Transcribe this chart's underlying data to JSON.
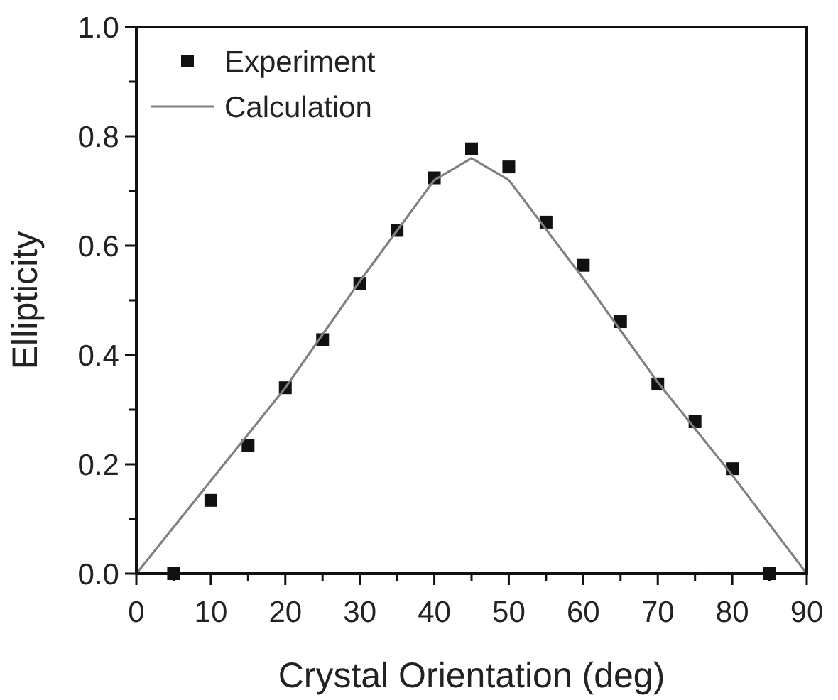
{
  "chart_data": {
    "type": "scatter",
    "xlabel": "Crystal Orientation (deg)",
    "ylabel": "Ellipticity",
    "xlim": [
      0,
      90
    ],
    "ylim": [
      0,
      1.0
    ],
    "xticks": [
      0,
      {
        "value": 5,
        "label": null
      },
      10,
      {
        "value": 15,
        "label": null
      },
      20,
      {
        "value": 25,
        "label": null
      },
      30,
      {
        "value": 35,
        "label": null
      },
      40,
      {
        "value": 45,
        "label": null
      },
      50,
      {
        "value": 55,
        "label": null
      },
      60,
      {
        "value": 65,
        "label": null
      },
      70,
      {
        "value": 75,
        "label": null
      },
      80,
      {
        "value": 85,
        "label": null
      },
      90
    ],
    "yticks": [
      {
        "value": 0,
        "label": "0.0"
      },
      {
        "value": 0.1,
        "label": null
      },
      0.2,
      {
        "value": 0.3,
        "label": null
      },
      0.4,
      {
        "value": 0.5,
        "label": null
      },
      0.6,
      {
        "value": 0.7,
        "label": null
      },
      0.8,
      {
        "value": 0.9,
        "label": null
      },
      {
        "value": 1,
        "label": "1.0"
      }
    ],
    "legend": "top left",
    "grid": false,
    "series": [
      {
        "name": "Experiment",
        "marker": "square",
        "color": "#111111",
        "x": [
          5,
          10,
          15,
          20,
          25,
          30,
          35,
          40,
          45,
          50,
          55,
          60,
          65,
          70,
          75,
          80,
          85
        ],
        "values": [
          0.0,
          0.134,
          0.235,
          0.34,
          0.428,
          0.531,
          0.628,
          0.724,
          0.777,
          0.744,
          0.643,
          0.564,
          0.461,
          0.347,
          0.278,
          0.192,
          0.0
        ]
      },
      {
        "name": "Calculation",
        "type": "line",
        "marker": "none",
        "line_style": "solid",
        "color": "#808080",
        "x": [
          0,
          10,
          20,
          30,
          40,
          45,
          50,
          60,
          70,
          80,
          90
        ],
        "values": [
          0,
          0.17,
          0.34,
          0.535,
          0.72,
          0.76,
          0.72,
          0.54,
          0.35,
          0.18,
          0
        ]
      }
    ]
  }
}
